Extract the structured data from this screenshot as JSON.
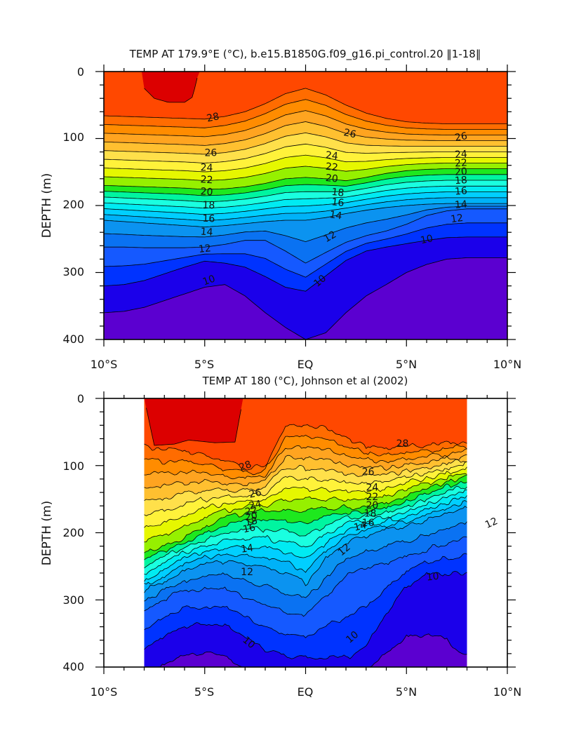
{
  "chart_data": [
    {
      "type": "contour",
      "title": "TEMP AT 179.9°E (°C), b.e15.B1850G.f09_g16.pi_control.20 ‖1-18‖",
      "xlabel": "",
      "ylabel": "DEPTH (m)",
      "x_ticks": [
        "10°S",
        "5°S",
        "EQ",
        "5°N",
        "10°N"
      ],
      "x_tick_values": [
        -10,
        -5,
        0,
        5,
        10
      ],
      "y_ticks": [
        "0",
        "100",
        "200",
        "300",
        "400"
      ],
      "y_tick_values": [
        0,
        100,
        200,
        300,
        400
      ],
      "xlim": [
        -10,
        10
      ],
      "ylim": [
        400,
        0
      ],
      "data_xlim": [
        -10,
        10
      ],
      "contour_interval": 1,
      "contour_labels": [
        {
          "text": "28",
          "lat": -4.6,
          "depth": 68,
          "rot": -12
        },
        {
          "text": "26",
          "lat": 2.2,
          "depth": 92,
          "rot": 12
        },
        {
          "text": "26",
          "lat": 7.7,
          "depth": 97,
          "rot": -10
        },
        {
          "text": "26",
          "lat": -4.7,
          "depth": 121,
          "rot": 0
        },
        {
          "text": "24",
          "lat": 1.3,
          "depth": 125,
          "rot": 6
        },
        {
          "text": "24",
          "lat": 7.7,
          "depth": 123,
          "rot": -4
        },
        {
          "text": "24",
          "lat": -4.9,
          "depth": 143,
          "rot": 2
        },
        {
          "text": "22",
          "lat": 1.3,
          "depth": 142,
          "rot": 6
        },
        {
          "text": "22",
          "lat": 7.7,
          "depth": 136,
          "rot": -4
        },
        {
          "text": "22",
          "lat": -4.9,
          "depth": 161,
          "rot": 4
        },
        {
          "text": "20",
          "lat": 1.3,
          "depth": 159,
          "rot": 6
        },
        {
          "text": "20",
          "lat": 7.7,
          "depth": 149,
          "rot": -4
        },
        {
          "text": "20",
          "lat": -4.9,
          "depth": 179,
          "rot": 4
        },
        {
          "text": "18",
          "lat": 1.6,
          "depth": 180,
          "rot": 6
        },
        {
          "text": "18",
          "lat": 7.7,
          "depth": 162,
          "rot": -4
        },
        {
          "text": "18",
          "lat": -4.8,
          "depth": 199,
          "rot": 2
        },
        {
          "text": "16",
          "lat": 1.6,
          "depth": 195,
          "rot": 6
        },
        {
          "text": "16",
          "lat": 7.7,
          "depth": 178,
          "rot": -4
        },
        {
          "text": "16",
          "lat": -4.8,
          "depth": 219,
          "rot": 2
        },
        {
          "text": "14",
          "lat": 1.5,
          "depth": 214,
          "rot": 8
        },
        {
          "text": "14",
          "lat": 7.7,
          "depth": 198,
          "rot": -4
        },
        {
          "text": "14",
          "lat": -4.9,
          "depth": 239,
          "rot": 4
        },
        {
          "text": "12",
          "lat": 1.2,
          "depth": 246,
          "rot": -30
        },
        {
          "text": "12",
          "lat": 7.5,
          "depth": 219,
          "rot": -8
        },
        {
          "text": "12",
          "lat": -5.0,
          "depth": 264,
          "rot": -6
        },
        {
          "text": "10",
          "lat": 6.0,
          "depth": 250,
          "rot": -12
        },
        {
          "text": "10",
          "lat": -4.8,
          "depth": 311,
          "rot": -20
        },
        {
          "text": "10",
          "lat": 0.7,
          "depth": 312,
          "rot": -40
        }
      ]
    },
    {
      "type": "contour",
      "title": "TEMP AT 180 (°C), Johnson et al (2002)",
      "xlabel": "",
      "ylabel": "DEPTH (m)",
      "x_ticks": [
        "10°S",
        "5°S",
        "EQ",
        "5°N",
        "10°N"
      ],
      "x_tick_values": [
        -10,
        -5,
        0,
        5,
        10
      ],
      "y_ticks": [
        "0",
        "100",
        "200",
        "300",
        "400"
      ],
      "y_tick_values": [
        0,
        100,
        200,
        300,
        400
      ],
      "xlim": [
        -10,
        10
      ],
      "ylim": [
        400,
        0
      ],
      "data_xlim": [
        -8,
        8
      ],
      "contour_interval": 1,
      "contour_labels": [
        {
          "text": "28",
          "lat": 4.8,
          "depth": 67,
          "rot": 0
        },
        {
          "text": "28",
          "lat": -3.0,
          "depth": 100,
          "rot": -20
        },
        {
          "text": "26",
          "lat": 3.1,
          "depth": 109,
          "rot": 0
        },
        {
          "text": "26",
          "lat": -2.5,
          "depth": 141,
          "rot": -12
        },
        {
          "text": "24",
          "lat": 3.3,
          "depth": 132,
          "rot": 0
        },
        {
          "text": "24",
          "lat": -2.5,
          "depth": 158,
          "rot": -12
        },
        {
          "text": "22",
          "lat": 3.3,
          "depth": 146,
          "rot": 0
        },
        {
          "text": "22",
          "lat": -2.7,
          "depth": 167,
          "rot": -12
        },
        {
          "text": "20",
          "lat": 3.3,
          "depth": 159,
          "rot": 0
        },
        {
          "text": "20",
          "lat": -2.7,
          "depth": 175,
          "rot": -12
        },
        {
          "text": "18",
          "lat": 3.2,
          "depth": 171,
          "rot": 0
        },
        {
          "text": "18",
          "lat": -2.7,
          "depth": 183,
          "rot": -12
        },
        {
          "text": "16",
          "lat": 3.1,
          "depth": 185,
          "rot": 0
        },
        {
          "text": "16",
          "lat": -2.8,
          "depth": 193,
          "rot": -12
        },
        {
          "text": "14",
          "lat": 2.7,
          "depth": 190,
          "rot": -14
        },
        {
          "text": "14",
          "lat": -2.9,
          "depth": 223,
          "rot": -8
        },
        {
          "text": "12",
          "lat": 9.2,
          "depth": 185,
          "rot": -24
        },
        {
          "text": "12",
          "lat": 1.9,
          "depth": 225,
          "rot": -40
        },
        {
          "text": "12",
          "lat": -2.9,
          "depth": 258,
          "rot": 0
        },
        {
          "text": "10",
          "lat": 6.3,
          "depth": 265,
          "rot": -6
        },
        {
          "text": "10",
          "lat": -2.8,
          "depth": 363,
          "rot": 40
        },
        {
          "text": "10",
          "lat": 2.3,
          "depth": 355,
          "rot": -40
        }
      ]
    }
  ],
  "palette": [
    "#5b00d0",
    "#1b00ea",
    "#0033ff",
    "#1559ff",
    "#0a72f2",
    "#0b93f0",
    "#00b2f8",
    "#00cfff",
    "#00ebf2",
    "#1affe0",
    "#00f5a0",
    "#1ee81e",
    "#96f000",
    "#e6f700",
    "#fff23a",
    "#ffe04a",
    "#ffc030",
    "#ffa420",
    "#ff8c00",
    "#ff6c00",
    "#ff4800",
    "#ff1b00",
    "#dc0000"
  ]
}
